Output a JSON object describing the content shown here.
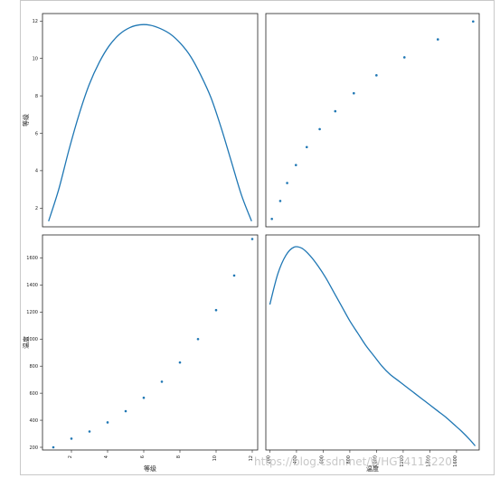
{
  "chart_data": [
    {
      "panel": "top-left",
      "type": "line",
      "kind": "density",
      "xlabel": "",
      "ylabel": "等级",
      "ylim": [
        1,
        12.4
      ],
      "yticks": [
        2,
        4,
        6,
        8,
        10,
        12
      ],
      "x": [
        0,
        0.05,
        0.1,
        0.15,
        0.2,
        0.25,
        0.3,
        0.35,
        0.4,
        0.45,
        0.5,
        0.55,
        0.6,
        0.65,
        0.7,
        0.75,
        0.8,
        0.85,
        0.9,
        0.95,
        1
      ],
      "y": [
        1.3,
        3.0,
        5.1,
        7.0,
        8.6,
        9.8,
        10.7,
        11.3,
        11.65,
        11.8,
        11.78,
        11.6,
        11.3,
        10.8,
        10.1,
        9.1,
        7.9,
        6.3,
        4.5,
        2.7,
        1.3
      ],
      "color": "#1f77b4"
    },
    {
      "panel": "top-right",
      "type": "scatter",
      "xlabel": "",
      "ylabel": "",
      "x": [
        200,
        264,
        317,
        384,
        467,
        566,
        685,
        827,
        1000,
        1214,
        1470,
        1740
      ],
      "y": [
        1,
        2,
        3,
        4,
        5,
        6,
        7,
        8,
        9,
        10,
        11,
        12
      ],
      "color": "#1f77b4"
    },
    {
      "panel": "bottom-left",
      "type": "scatter",
      "xlabel": "等级",
      "ylabel": "温度",
      "xticks": [
        2,
        4,
        6,
        8,
        10,
        12
      ],
      "yticks": [
        200,
        400,
        600,
        800,
        1000,
        1200,
        1400,
        1600
      ],
      "xlim": [
        0.4,
        12.3
      ],
      "ylim": [
        180,
        1770
      ],
      "x": [
        1,
        2,
        3,
        4,
        5,
        6,
        7,
        8,
        9,
        10,
        11,
        12
      ],
      "y": [
        200,
        264,
        317,
        384,
        467,
        566,
        685,
        827,
        1000,
        1214,
        1470,
        1740
      ],
      "color": "#1f77b4"
    },
    {
      "panel": "bottom-right",
      "type": "line",
      "kind": "density",
      "xlabel": "温度",
      "ylabel": "",
      "xticks": [
        200,
        400,
        600,
        800,
        1000,
        1200,
        1400,
        1600
      ],
      "xlim": [
        170,
        1770
      ],
      "x": [
        200,
        260,
        320,
        380,
        440,
        500,
        560,
        620,
        680,
        740,
        800,
        860,
        920,
        980,
        1040,
        1100,
        1160,
        1220,
        1280,
        1340,
        1400,
        1460,
        1520,
        1580,
        1640,
        1700,
        1740
      ],
      "y": [
        0.71,
        0.86,
        0.95,
        0.99,
        0.985,
        0.95,
        0.9,
        0.84,
        0.77,
        0.7,
        0.63,
        0.57,
        0.51,
        0.46,
        0.41,
        0.37,
        0.34,
        0.31,
        0.28,
        0.25,
        0.22,
        0.19,
        0.16,
        0.125,
        0.09,
        0.05,
        0.02
      ],
      "ylim": [
        0,
        1.05
      ],
      "color": "#1f77b4"
    }
  ],
  "watermark": "https://blog.csdn.net/WHGT4114220"
}
